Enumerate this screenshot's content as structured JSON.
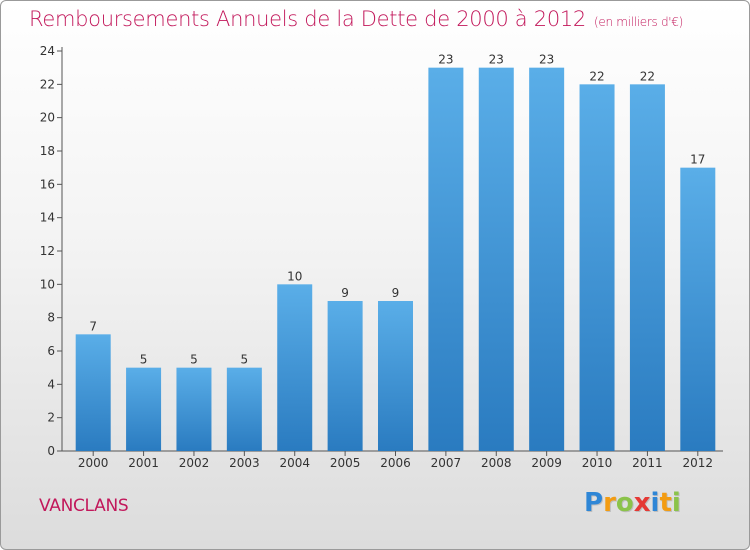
{
  "title": "Remboursements Annuels de la Dette de 2000 à 2012",
  "unit": "(en milliers d'€)",
  "commune": "VANCLANS",
  "logo": {
    "text": "Proxiti",
    "letters": [
      {
        "ch": "P",
        "color": "#2e86d6"
      },
      {
        "ch": "r",
        "color": "#f39c12"
      },
      {
        "ch": "o",
        "color": "#8bc34a"
      },
      {
        "ch": "x",
        "color": "#e53935"
      },
      {
        "ch": "i",
        "color": "#2e86d6"
      },
      {
        "ch": "t",
        "color": "#f39c12"
      },
      {
        "ch": "i",
        "color": "#8bc34a"
      }
    ]
  },
  "chart_data": {
    "type": "bar",
    "categories": [
      "2000",
      "2001",
      "2002",
      "2003",
      "2004",
      "2005",
      "2006",
      "2007",
      "2008",
      "2009",
      "2010",
      "2011",
      "2012"
    ],
    "values": [
      7,
      5,
      5,
      5,
      10,
      9,
      9,
      23,
      23,
      23,
      22,
      22,
      17
    ],
    "ylim": [
      0,
      24
    ],
    "yticks": [
      0,
      2,
      4,
      6,
      8,
      10,
      12,
      14,
      16,
      18,
      20,
      22,
      24
    ],
    "grid": false,
    "bar_color_top": "#5aaee8",
    "bar_color_bottom": "#2a7bc0"
  }
}
